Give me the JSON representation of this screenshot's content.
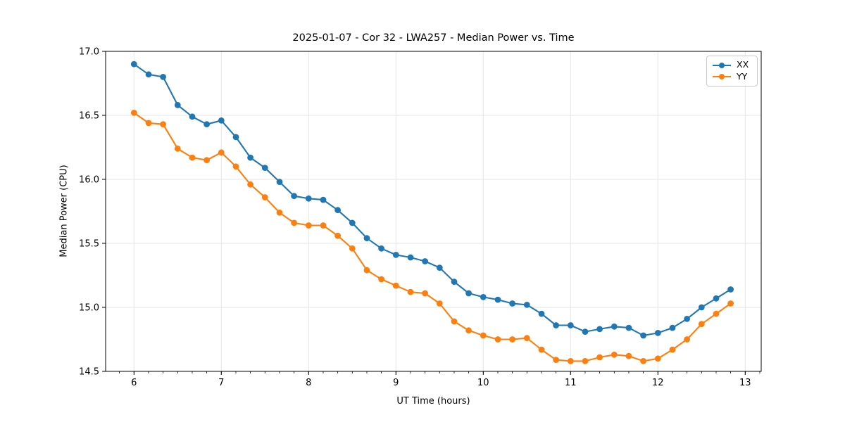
{
  "chart_data": {
    "type": "line",
    "title": "2025-01-07 - Cor 32 - LWA257 - Median Power vs. Time",
    "xlabel": "UT Time (hours)",
    "ylabel": "Median Power (CPU)",
    "xlim": [
      5.675,
      13.183
    ],
    "ylim": [
      14.5,
      17.0
    ],
    "x_ticks": [
      6,
      7,
      8,
      9,
      10,
      11,
      12,
      13
    ],
    "y_ticks": [
      14.5,
      15.0,
      15.5,
      16.0,
      16.5,
      17.0
    ],
    "x_minor_interval": 0.1666667,
    "grid": true,
    "legend_position": "upper right",
    "x": [
      6.0,
      6.1667,
      6.3333,
      6.5,
      6.6667,
      6.8333,
      7.0,
      7.1667,
      7.3333,
      7.5,
      7.6667,
      7.8333,
      8.0,
      8.1667,
      8.3333,
      8.5,
      8.6667,
      8.8333,
      9.0,
      9.1667,
      9.3333,
      9.5,
      9.6667,
      9.8333,
      10.0,
      10.1667,
      10.3333,
      10.5,
      10.6667,
      10.8333,
      11.0,
      11.1667,
      11.3333,
      11.5,
      11.6667,
      11.8333,
      12.0,
      12.1667,
      12.3333,
      12.5,
      12.6667,
      12.8333
    ],
    "series": [
      {
        "name": "XX",
        "color": "#1f77b4",
        "values": [
          16.9,
          16.82,
          16.8,
          16.58,
          16.49,
          16.43,
          16.46,
          16.33,
          16.17,
          16.09,
          15.98,
          15.87,
          15.85,
          15.84,
          15.76,
          15.66,
          15.54,
          15.46,
          15.41,
          15.39,
          15.36,
          15.31,
          15.2,
          15.11,
          15.08,
          15.06,
          15.03,
          15.02,
          14.95,
          14.86,
          14.86,
          14.81,
          14.83,
          14.85,
          14.84,
          14.78,
          14.8,
          14.84,
          14.91,
          15.0,
          15.07,
          15.14
        ]
      },
      {
        "name": "YY",
        "color": "#ff7f0e",
        "values": [
          16.52,
          16.44,
          16.43,
          16.24,
          16.17,
          16.15,
          16.21,
          16.1,
          15.96,
          15.86,
          15.74,
          15.66,
          15.64,
          15.64,
          15.56,
          15.46,
          15.29,
          15.22,
          15.17,
          15.12,
          15.11,
          15.03,
          14.89,
          14.82,
          14.78,
          14.75,
          14.75,
          14.76,
          14.67,
          14.59,
          14.58,
          14.58,
          14.61,
          14.63,
          14.62,
          14.58,
          14.6,
          14.67,
          14.75,
          14.87,
          14.95,
          15.03
        ]
      }
    ]
  },
  "style": {
    "grid_color": "#e6e6e6",
    "spine_color": "#000000",
    "tick_color": "#000000",
    "text_color": "#000000"
  }
}
